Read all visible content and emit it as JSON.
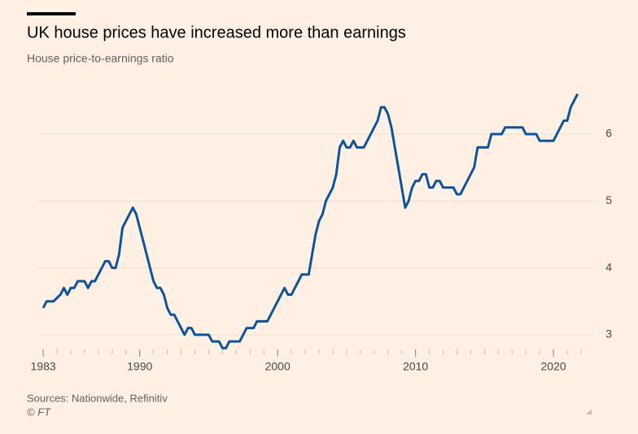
{
  "chart_data": {
    "type": "line",
    "title": "UK house prices have increased more than earnings",
    "subtitle": "House price-to-earnings ratio",
    "source": "Sources: Nationwide, Refinitiv",
    "credit": "© FT",
    "x": [
      1983,
      1983.25,
      1983.75,
      1984.25,
      1984.5,
      1984.75,
      1985,
      1985.25,
      1985.5,
      1986,
      1986.25,
      1986.5,
      1986.75,
      1987.25,
      1987.5,
      1987.75,
      1988,
      1988.25,
      1988.5,
      1988.75,
      1989,
      1989.5,
      1989.75,
      1990,
      1990.25,
      1990.5,
      1990.75,
      1991,
      1991.25,
      1991.5,
      1991.75,
      1992,
      1992.25,
      1992.5,
      1992.75,
      1993,
      1993.25,
      1993.5,
      1993.75,
      1994,
      1995,
      1995.25,
      1995.75,
      1996,
      1996.25,
      1996.5,
      1997.25,
      1997.75,
      1998.25,
      1998.5,
      1999.25,
      2000,
      2000.5,
      2000.75,
      2001,
      2001.75,
      2002.25,
      2002.75,
      2003,
      2003.25,
      2003.5,
      2004,
      2004.25,
      2004.5,
      2004.75,
      2005,
      2005.25,
      2005.5,
      2005.75,
      2006.25,
      2007.25,
      2007.5,
      2007.75,
      2008,
      2008.25,
      2008.75,
      2009.25,
      2009.5,
      2009.75,
      2010,
      2010.25,
      2010.5,
      2010.75,
      2011,
      2011.25,
      2011.5,
      2011.75,
      2012,
      2012.75,
      2013,
      2013.25,
      2014.25,
      2014.5,
      2015.25,
      2015.5,
      2016.25,
      2016.5,
      2017.75,
      2018,
      2018.75,
      2019,
      2020,
      2020.5,
      2020.75,
      2021,
      2021.25,
      2021.75
    ],
    "series": [
      {
        "name": "House price-to-earnings ratio",
        "color": "#0f5499",
        "values": [
          3.4,
          3.5,
          3.5,
          3.6,
          3.7,
          3.6,
          3.7,
          3.7,
          3.8,
          3.8,
          3.7,
          3.8,
          3.8,
          4.0,
          4.1,
          4.1,
          4.0,
          4.0,
          4.2,
          4.6,
          4.7,
          4.9,
          4.8,
          4.6,
          4.4,
          4.2,
          4.0,
          3.8,
          3.7,
          3.7,
          3.6,
          3.4,
          3.3,
          3.3,
          3.2,
          3.1,
          3.0,
          3.1,
          3.1,
          3.0,
          3.0,
          2.9,
          2.9,
          2.8,
          2.8,
          2.9,
          2.9,
          3.1,
          3.1,
          3.2,
          3.2,
          3.5,
          3.7,
          3.6,
          3.6,
          3.9,
          3.9,
          4.5,
          4.7,
          4.8,
          5.0,
          5.2,
          5.4,
          5.8,
          5.9,
          5.8,
          5.8,
          5.9,
          5.8,
          5.8,
          6.2,
          6.4,
          6.4,
          6.3,
          6.1,
          5.5,
          4.9,
          5.0,
          5.2,
          5.3,
          5.3,
          5.4,
          5.4,
          5.2,
          5.2,
          5.3,
          5.3,
          5.2,
          5.2,
          5.1,
          5.1,
          5.5,
          5.8,
          5.8,
          6.0,
          6.0,
          6.1,
          6.1,
          6.0,
          6.0,
          5.9,
          5.9,
          6.1,
          6.2,
          6.2,
          6.4,
          6.6
        ]
      }
    ],
    "xlim": [
      1982.7,
      2022
    ],
    "xticks": [
      1983,
      1990,
      2000,
      2010,
      2020
    ],
    "xminor_ticks": [
      1983,
      1984,
      1985,
      1986,
      1987,
      1988,
      1989,
      1990,
      1991,
      1992,
      1993,
      1994,
      1995,
      1996,
      1997,
      1998,
      1999,
      2000,
      2001,
      2002,
      2003,
      2004,
      2005,
      2006,
      2007,
      2008,
      2009,
      2010,
      2011,
      2012,
      2013,
      2014,
      2015,
      2016,
      2017,
      2018,
      2019,
      2020,
      2021,
      2022
    ],
    "ylim": [
      2.78,
      6.85
    ],
    "yticks": [
      3,
      4,
      5,
      6
    ],
    "grid": true
  }
}
